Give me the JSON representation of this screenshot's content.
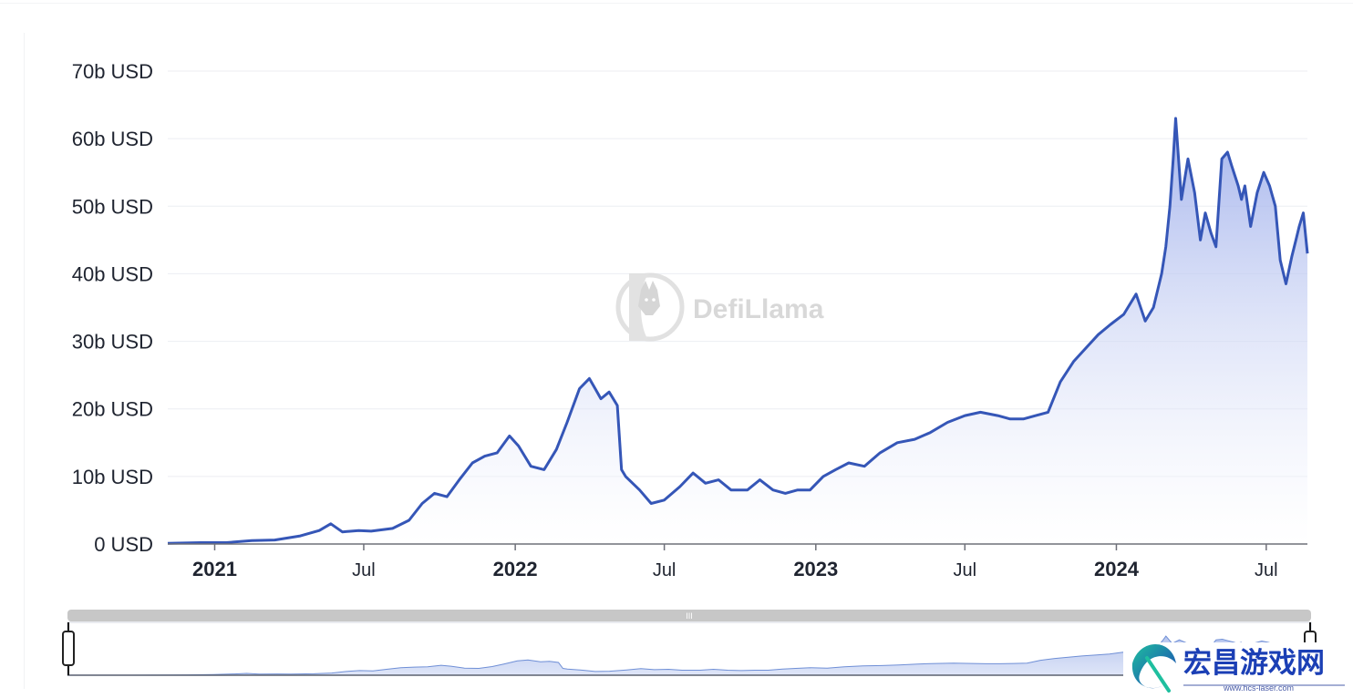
{
  "watermark": "DefiLlama",
  "promo": {
    "title": "宏昌游戏网",
    "url": "www.hcs-laser.com"
  },
  "colors": {
    "line": "#3556b7",
    "area_top": "#9aabea",
    "area_bottom": "#ffffff",
    "grid": "#eceef2",
    "slider": "#c7c7c7",
    "promo": "#1b3fb5"
  },
  "slider": {
    "handle_label": "III",
    "range": [
      0,
      1
    ]
  },
  "chart_data": {
    "type": "area",
    "title": "",
    "xlabel": "",
    "ylabel": "",
    "y_unit": "USD",
    "ylim": [
      0,
      70
    ],
    "xlim": [
      "2020-11-05",
      "2024-08-20"
    ],
    "grid": true,
    "yticks": [
      {
        "value": 0,
        "label": "0 USD"
      },
      {
        "value": 10,
        "label": "10b USD"
      },
      {
        "value": 20,
        "label": "20b USD"
      },
      {
        "value": 30,
        "label": "30b USD"
      },
      {
        "value": 40,
        "label": "40b USD"
      },
      {
        "value": 50,
        "label": "50b USD"
      },
      {
        "value": 60,
        "label": "60b USD"
      },
      {
        "value": 70,
        "label": "70b USD"
      }
    ],
    "xticks": [
      {
        "date": "2021-01-01",
        "label": "2021",
        "bold": true
      },
      {
        "date": "2021-07-01",
        "label": "Jul",
        "bold": false
      },
      {
        "date": "2022-01-01",
        "label": "2022",
        "bold": true
      },
      {
        "date": "2022-07-01",
        "label": "Jul",
        "bold": false
      },
      {
        "date": "2023-01-01",
        "label": "2023",
        "bold": true
      },
      {
        "date": "2023-07-01",
        "label": "Jul",
        "bold": false
      },
      {
        "date": "2024-01-01",
        "label": "2024",
        "bold": true
      },
      {
        "date": "2024-07-01",
        "label": "Jul",
        "bold": false
      }
    ],
    "series": [
      {
        "x": [
          "2020-11-05",
          "2020-12-15",
          "2021-01-15",
          "2021-02-15",
          "2021-03-15",
          "2021-04-15",
          "2021-05-08",
          "2021-05-22",
          "2021-06-05",
          "2021-06-25",
          "2021-07-10",
          "2021-08-05",
          "2021-08-25",
          "2021-09-10",
          "2021-09-25",
          "2021-10-10",
          "2021-10-25",
          "2021-11-10",
          "2021-11-25",
          "2021-12-10",
          "2021-12-25",
          "2022-01-05",
          "2022-01-20",
          "2022-02-05",
          "2022-02-20",
          "2022-03-05",
          "2022-03-20",
          "2022-04-01",
          "2022-04-08",
          "2022-04-15",
          "2022-04-25",
          "2022-05-05",
          "2022-05-10",
          "2022-05-15",
          "2022-06-01",
          "2022-06-15",
          "2022-07-01",
          "2022-07-20",
          "2022-08-05",
          "2022-08-20",
          "2022-09-05",
          "2022-09-20",
          "2022-10-10",
          "2022-10-25",
          "2022-11-10",
          "2022-11-25",
          "2022-12-10",
          "2022-12-25",
          "2023-01-10",
          "2023-01-25",
          "2023-02-10",
          "2023-03-01",
          "2023-03-20",
          "2023-04-10",
          "2023-05-01",
          "2023-05-20",
          "2023-06-10",
          "2023-07-01",
          "2023-07-20",
          "2023-08-10",
          "2023-08-25",
          "2023-09-10",
          "2023-09-25",
          "2023-10-10",
          "2023-10-25",
          "2023-11-10",
          "2023-11-25",
          "2023-12-10",
          "2023-12-25",
          "2024-01-10",
          "2024-01-25",
          "2024-02-05",
          "2024-02-15",
          "2024-02-25",
          "2024-03-01",
          "2024-03-06",
          "2024-03-10",
          "2024-03-13",
          "2024-03-20",
          "2024-03-28",
          "2024-04-05",
          "2024-04-12",
          "2024-04-18",
          "2024-04-25",
          "2024-05-01",
          "2024-05-08",
          "2024-05-15",
          "2024-05-20",
          "2024-05-28",
          "2024-06-01",
          "2024-06-05",
          "2024-06-12",
          "2024-06-20",
          "2024-06-28",
          "2024-07-05",
          "2024-07-12",
          "2024-07-18",
          "2024-07-25",
          "2024-08-01",
          "2024-08-06",
          "2024-08-10",
          "2024-08-15",
          "2024-08-20"
        ],
        "y": [
          0.1,
          0.2,
          0.2,
          0.5,
          0.6,
          1.2,
          2.0,
          3.0,
          1.8,
          2.0,
          1.9,
          2.3,
          3.5,
          6.0,
          7.5,
          7.0,
          9.5,
          12.0,
          13.0,
          13.5,
          16.0,
          14.5,
          11.5,
          11.0,
          14.0,
          18.0,
          23.0,
          24.5,
          23.0,
          21.5,
          22.5,
          20.5,
          11.0,
          10.0,
          8.0,
          6.0,
          6.5,
          8.5,
          10.5,
          9.0,
          9.5,
          8.0,
          8.0,
          9.5,
          8.0,
          7.5,
          8.0,
          8.0,
          10.0,
          11.0,
          12.0,
          11.5,
          13.5,
          15.0,
          15.5,
          16.5,
          18.0,
          19.0,
          19.5,
          19.0,
          18.5,
          18.5,
          19.0,
          19.5,
          24.0,
          27.0,
          29.0,
          31.0,
          32.5,
          34.0,
          37.0,
          33.0,
          35.0,
          40.0,
          44.0,
          50.0,
          57.0,
          63.0,
          51.0,
          57.0,
          52.0,
          45.0,
          49.0,
          46.0,
          44.0,
          57.0,
          58.0,
          56.0,
          53.0,
          51.0,
          53.0,
          47.0,
          52.0,
          55.0,
          53.0,
          50.0,
          42.0,
          38.5,
          42.5,
          45.0,
          47.0,
          49.0,
          43.0
        ]
      }
    ]
  }
}
